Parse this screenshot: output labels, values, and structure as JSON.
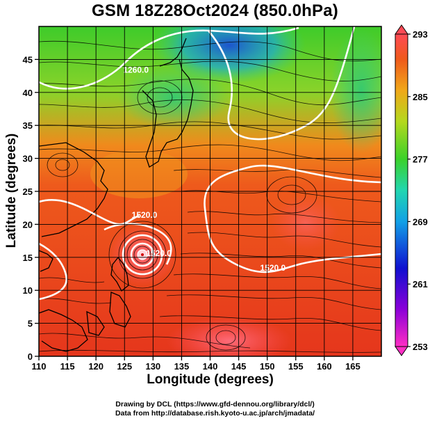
{
  "title": "GSM 18Z28Oct2024 (850.0hPa)",
  "x_axis": {
    "label": "Longitude (degrees)",
    "range": [
      110,
      170
    ],
    "ticks": [
      "110",
      "115",
      "120",
      "125",
      "130",
      "135",
      "140",
      "145",
      "150",
      "155",
      "160",
      "165"
    ]
  },
  "y_axis": {
    "label": "Latitude (degrees)",
    "range": [
      0,
      50
    ],
    "ticks": [
      "0",
      "5",
      "10",
      "15",
      "20",
      "25",
      "30",
      "35",
      "40",
      "45"
    ]
  },
  "colorbar": {
    "ticks": [
      "253",
      "261",
      "269",
      "277",
      "285",
      "293"
    ],
    "range": [
      253,
      293
    ]
  },
  "contour_labels": [
    {
      "text": "1260.0",
      "lon": 127.0,
      "lat": 43.0
    },
    {
      "text": "1520.0",
      "lon": 128.5,
      "lat": 21.0
    },
    {
      "text": "1520.0",
      "lon": 131.0,
      "lat": 15.2
    },
    {
      "text": "1520.0",
      "lon": 151.0,
      "lat": 13.0
    }
  ],
  "credits": {
    "line1": "Drawing by DCL (https://www.gfd-dennou.org/library/dcl/)",
    "line2": "Data from http://database.rish.kyoto-u.ac.jp/arch/jmadata/"
  },
  "colors": {
    "warm": "#e6331f",
    "hot": "#ff5a6a",
    "cold": "#1e5fd6",
    "mid": "#37c832",
    "contour": "#ffffff",
    "stream": "#000000"
  }
}
